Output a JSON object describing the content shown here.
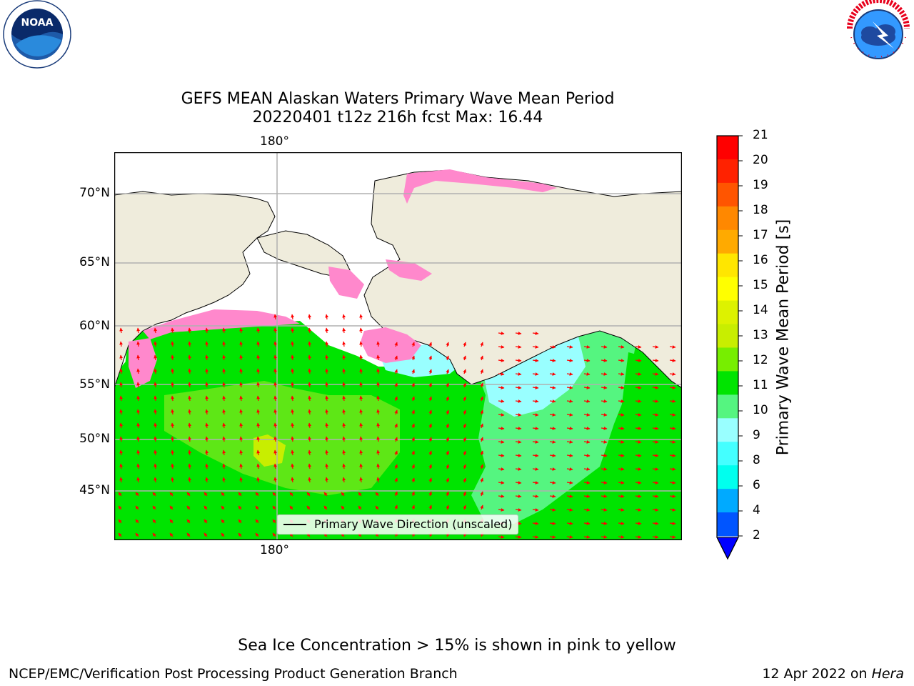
{
  "header": {
    "title_line1": "GEFS MEAN Alaskan Waters Primary Wave Mean Period",
    "title_line2": "20220401 t12z 216h fcst   Max: 16.44"
  },
  "logos": {
    "noaa": {
      "text": "NOAA",
      "ring_text": "NATIONAL OCEANIC AND ATMOSPHERIC ADMINISTRATION · U.S. DEPARTMENT OF COMMERCE"
    },
    "nws": {
      "ring_text": "NATIONAL WEATHER SERVICE"
    }
  },
  "map": {
    "lat_labels": [
      "70°N",
      "65°N",
      "60°N",
      "55°N",
      "50°N",
      "45°N"
    ],
    "lon_label_top": "180°",
    "lon_label_bottom": "180°",
    "legend_label": "Primary Wave Direction (unscaled)",
    "colors": {
      "land": "#efecdc",
      "ocean_green": "#00e400",
      "ocean_light_green": "#55f580",
      "ocean_cyan": "#99ffff",
      "ocean_yellowgreen": "#a6e61a",
      "ice_pink": "#ff88cc",
      "ice_magenta": "#ff33dd",
      "arrow": "#ff0000",
      "gridline": "#b0b0b0"
    }
  },
  "colorbar": {
    "label": "Primary Wave Mean Period [s]",
    "ticks": [
      "21",
      "20",
      "19",
      "18",
      "17",
      "16",
      "15",
      "14",
      "13",
      "12",
      "11",
      "10",
      "9",
      "8",
      "6",
      "4",
      "2"
    ],
    "colors": [
      "#ff0000",
      "#ff2200",
      "#ff5500",
      "#ff8800",
      "#ffaa00",
      "#ffe600",
      "#ffff00",
      "#ddf200",
      "#c8ee00",
      "#77ee00",
      "#00e400",
      "#55f580",
      "#99ffff",
      "#44ffff",
      "#00ffee",
      "#00aaff",
      "#0055ff"
    ],
    "under_color": "#0000ff"
  },
  "footer": {
    "note": "Sea Ice Concentration > 15% is shown in pink to yellow",
    "left": "NCEP/EMC/Verification Post Processing Product Generation Branch",
    "right_date": "12 Apr 2022 on ",
    "right_host": "Hera"
  }
}
